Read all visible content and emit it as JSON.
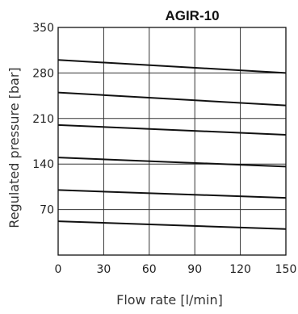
{
  "chart_data": {
    "type": "line",
    "title": "AGIR-10",
    "xlabel": "Flow rate [l/min]",
    "ylabel": "Regulated pressure  [bar]",
    "xlim": [
      0,
      150
    ],
    "ylim": [
      0,
      350
    ],
    "xticks": [
      0,
      30,
      60,
      90,
      120,
      150
    ],
    "yticks": [
      70,
      140,
      210,
      280,
      350
    ],
    "xtick_labels": [
      "0",
      "30",
      "60",
      "90",
      "120",
      "150"
    ],
    "ytick_labels": [
      "70",
      "140",
      "210",
      "280",
      "350"
    ],
    "grid": true,
    "series": [
      {
        "x": [
          0,
          150
        ],
        "y": [
          300,
          280
        ]
      },
      {
        "x": [
          0,
          150
        ],
        "y": [
          250,
          230
        ]
      },
      {
        "x": [
          0,
          150
        ],
        "y": [
          200,
          185
        ]
      },
      {
        "x": [
          0,
          150
        ],
        "y": [
          150,
          136
        ]
      },
      {
        "x": [
          0,
          150
        ],
        "y": [
          100,
          88
        ]
      },
      {
        "x": [
          0,
          150
        ],
        "y": [
          52,
          40
        ]
      }
    ]
  }
}
